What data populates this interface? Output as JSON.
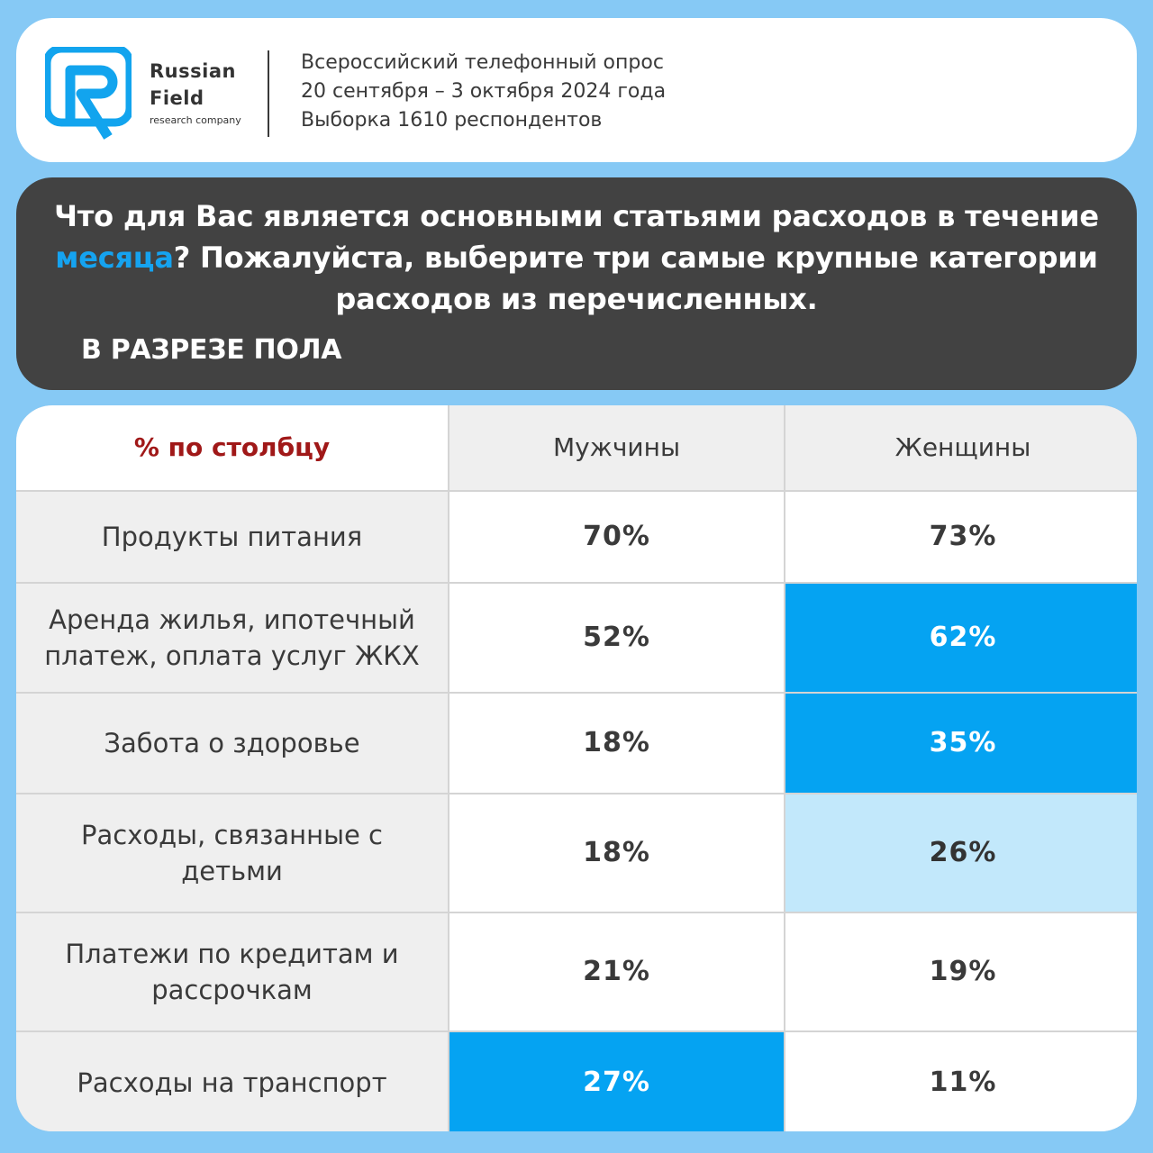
{
  "header": {
    "logo_name_line1": "Russian",
    "logo_name_line2": "Field",
    "logo_subtitle": "research company",
    "survey_lines": [
      "Всероссийский телефонный опрос",
      "20 сентября – 3 октября 2024 года",
      "Выборка 1610 респондентов"
    ]
  },
  "question": {
    "text_before": "Что для Вас является основными статьями расходов в течение ",
    "highlight": "месяца",
    "text_after": "? Пожалуйста, выберите три самые крупные категории расходов из перечисленных.",
    "section": "В РАЗРЕЗЕ ПОЛА"
  },
  "colors": {
    "background": "#86c9f5",
    "dark_panel": "#424242",
    "accent_blue": "#15a3f0",
    "highlight_strong": "#05a3f2",
    "highlight_light": "#c2e8fb",
    "header_label_red": "#a01818"
  },
  "chart_data": {
    "type": "table",
    "corner_label": "% по столбцу",
    "columns": [
      "Мужчины",
      "Женщины"
    ],
    "unit": "%",
    "rows": [
      {
        "label": "Продукты питания",
        "values": [
          70,
          73
        ],
        "highlight": [
          "none",
          "none"
        ]
      },
      {
        "label": "Аренда жилья, ипотечный платеж,  оплата услуг ЖКХ",
        "values": [
          52,
          62
        ],
        "highlight": [
          "none",
          "strong"
        ]
      },
      {
        "label": "Забота о здоровье",
        "values": [
          18,
          35
        ],
        "highlight": [
          "none",
          "strong"
        ]
      },
      {
        "label": "Расходы, связанные с детьми",
        "values": [
          18,
          26
        ],
        "highlight": [
          "none",
          "light"
        ]
      },
      {
        "label": "Платежи по кредитам и рассрочкам",
        "values": [
          21,
          19
        ],
        "highlight": [
          "none",
          "none"
        ]
      },
      {
        "label": "Расходы на транспорт",
        "values": [
          27,
          11
        ],
        "highlight": [
          "strong",
          "none"
        ]
      }
    ]
  }
}
